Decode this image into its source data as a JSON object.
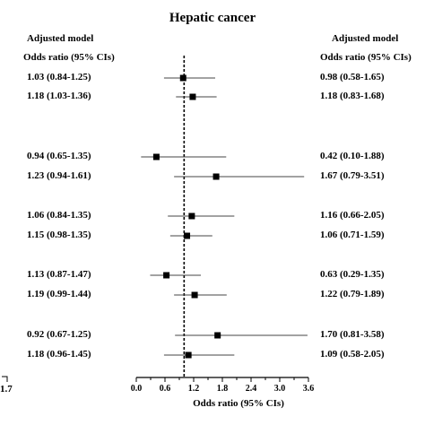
{
  "chart_data": {
    "type": "scatter",
    "title": "Hepatic cancer",
    "xlabel": "Odds ratio (95% CIs)",
    "xlim": [
      0.0,
      3.6
    ],
    "xticks": [
      "0.0",
      "0.6",
      "1.2",
      "1.8",
      "2.4",
      "3.0",
      "3.6"
    ],
    "reference_line": 1.0,
    "left_header": [
      "Adjusted model",
      "Odds ratio (95% CIs)"
    ],
    "right_header": [
      "Adjusted model",
      "Odds ratio (95% CIs)"
    ],
    "stray_label": "1.7",
    "rows": [
      {
        "left_label": "1.03 (0.84-1.25)",
        "right_label": "0.98 (0.58-1.65)",
        "or": 0.98,
        "lo": 0.58,
        "hi": 1.65
      },
      {
        "left_label": "1.18 (1.03-1.36)",
        "right_label": "1.18 (0.83-1.68)",
        "or": 1.18,
        "lo": 0.83,
        "hi": 1.68
      },
      {
        "left_label": "0.94 (0.65-1.35)",
        "right_label": "0.42 (0.10-1.88)",
        "or": 0.42,
        "lo": 0.1,
        "hi": 1.88
      },
      {
        "left_label": "1.23 (0.94-1.61)",
        "right_label": "1.67 (0.79-3.51)",
        "or": 1.67,
        "lo": 0.79,
        "hi": 3.51
      },
      {
        "left_label": "1.06 (0.84-1.35)",
        "right_label": "1.16 (0.66-2.05)",
        "or": 1.16,
        "lo": 0.66,
        "hi": 2.05
      },
      {
        "left_label": "1.15 (0.98-1.35)",
        "right_label": "1.06 (0.71-1.59)",
        "or": 1.06,
        "lo": 0.71,
        "hi": 1.59
      },
      {
        "left_label": "1.13 (0.87-1.47)",
        "right_label": "0.63 (0.29-1.35)",
        "or": 0.63,
        "lo": 0.29,
        "hi": 1.35
      },
      {
        "left_label": "1.19 (0.99-1.44)",
        "right_label": "1.22 (0.79-1.89)",
        "or": 1.22,
        "lo": 0.79,
        "hi": 1.89
      },
      {
        "left_label": "0.92 (0.67-1.25)",
        "right_label": "1.70 (0.81-3.58)",
        "or": 1.7,
        "lo": 0.81,
        "hi": 3.58
      },
      {
        "left_label": "1.18 (0.96-1.45)",
        "right_label": "1.09 (0.58-2.05)",
        "or": 1.09,
        "lo": 0.58,
        "hi": 2.05
      }
    ]
  }
}
